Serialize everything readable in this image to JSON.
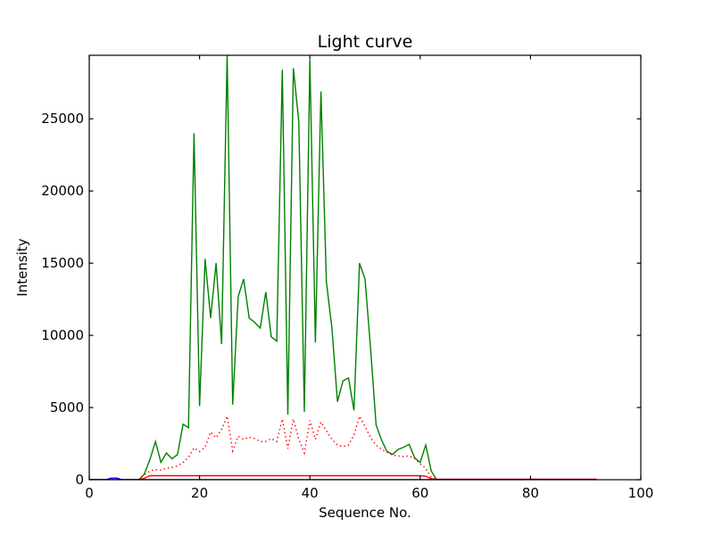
{
  "figure": {
    "background": "#ffffff",
    "axis_color": "#000000"
  },
  "chart_data": {
    "type": "line",
    "title": "Light curve",
    "xlabel": "Sequence No.",
    "ylabel": "Intensity",
    "xlim": [
      0,
      100
    ],
    "ylim": [
      0,
      29400
    ],
    "xticks": [
      0,
      20,
      40,
      60,
      80,
      100
    ],
    "yticks": [
      0,
      5000,
      10000,
      15000,
      20000,
      25000
    ],
    "grid": false,
    "legend": null,
    "x": {
      "start": 0,
      "step": 1,
      "count": 93
    },
    "series": [
      {
        "name": "green-line",
        "color": "#008000",
        "style": "solid",
        "values": [
          0,
          0,
          0,
          0,
          0,
          0,
          0,
          0,
          0,
          0,
          400,
          1400,
          2650,
          1200,
          1850,
          1450,
          1750,
          3850,
          3600,
          24000,
          5100,
          15300,
          11200,
          15000,
          9400,
          29400,
          5200,
          12700,
          13900,
          11200,
          10900,
          10500,
          13000,
          9900,
          9600,
          28400,
          4500,
          28500,
          24800,
          4700,
          29100,
          9500,
          26900,
          13700,
          10500,
          5400,
          6850,
          7050,
          4800,
          15000,
          13900,
          9100,
          3800,
          2750,
          1950,
          1750,
          2100,
          2250,
          2450,
          1520,
          1200,
          2400,
          600,
          0,
          0,
          0,
          0,
          0,
          0,
          0,
          0,
          0,
          0,
          0,
          0,
          0,
          0,
          0,
          0,
          0,
          0,
          0,
          0,
          0,
          0,
          0,
          0,
          0,
          0,
          0,
          0,
          0,
          0
        ]
      },
      {
        "name": "red-dotted-line",
        "color": "#ff0000",
        "style": "dotted",
        "values": [
          0,
          0,
          0,
          0,
          0,
          0,
          0,
          0,
          0,
          0,
          350,
          600,
          700,
          660,
          800,
          850,
          950,
          1200,
          1550,
          2200,
          1950,
          2250,
          3300,
          2900,
          3500,
          4400,
          2000,
          3000,
          2800,
          2950,
          2850,
          2650,
          2650,
          2850,
          2650,
          4200,
          2150,
          4200,
          2800,
          1850,
          4100,
          2800,
          4000,
          3400,
          2800,
          2400,
          2300,
          2400,
          3100,
          4400,
          3700,
          2900,
          2400,
          2100,
          1900,
          1700,
          1650,
          1600,
          1650,
          1450,
          1100,
          800,
          150,
          0,
          0,
          0,
          0,
          0,
          0,
          0,
          0,
          0,
          0,
          0,
          0,
          0,
          0,
          0,
          0,
          0,
          0,
          0,
          0,
          0,
          0,
          0,
          0,
          0,
          0,
          0,
          0,
          0,
          0
        ]
      },
      {
        "name": "red-solid-line",
        "color": "#ff0000",
        "style": "solid",
        "values": [
          0,
          0,
          0,
          0,
          0,
          0,
          0,
          0,
          0,
          0,
          100,
          280,
          280,
          280,
          280,
          280,
          280,
          280,
          280,
          280,
          280,
          280,
          280,
          280,
          280,
          280,
          280,
          280,
          280,
          280,
          280,
          280,
          280,
          280,
          280,
          280,
          280,
          280,
          280,
          280,
          280,
          280,
          280,
          280,
          280,
          280,
          280,
          280,
          280,
          280,
          280,
          280,
          280,
          280,
          280,
          280,
          280,
          280,
          280,
          280,
          280,
          250,
          60,
          40,
          40,
          40,
          40,
          40,
          40,
          40,
          40,
          40,
          40,
          40,
          40,
          40,
          40,
          40,
          40,
          40,
          40,
          40,
          40,
          40,
          40,
          40,
          40,
          40,
          40,
          40,
          40,
          40,
          40
        ]
      },
      {
        "name": "blue-line",
        "color": "#0000ff",
        "style": "solid",
        "values": [
          0,
          0,
          0,
          0,
          110,
          110,
          0,
          0,
          0,
          0,
          0,
          0,
          0,
          0,
          0,
          0,
          0,
          0,
          0,
          0,
          0,
          0,
          0,
          0,
          0,
          0,
          0,
          0,
          0,
          0,
          0,
          0,
          0,
          0,
          0,
          0,
          0,
          0,
          0,
          0,
          0,
          0,
          0,
          0,
          0,
          0,
          0,
          0,
          0,
          0,
          0,
          0,
          0,
          0,
          0,
          0,
          0,
          0,
          0,
          0,
          0,
          0,
          0,
          0,
          0,
          0,
          0,
          0,
          0,
          0,
          0,
          0,
          0,
          0,
          0,
          0,
          0,
          0,
          0,
          0,
          0,
          0,
          0,
          0,
          0,
          0,
          0,
          0,
          0,
          0,
          0,
          0,
          0
        ]
      }
    ]
  }
}
